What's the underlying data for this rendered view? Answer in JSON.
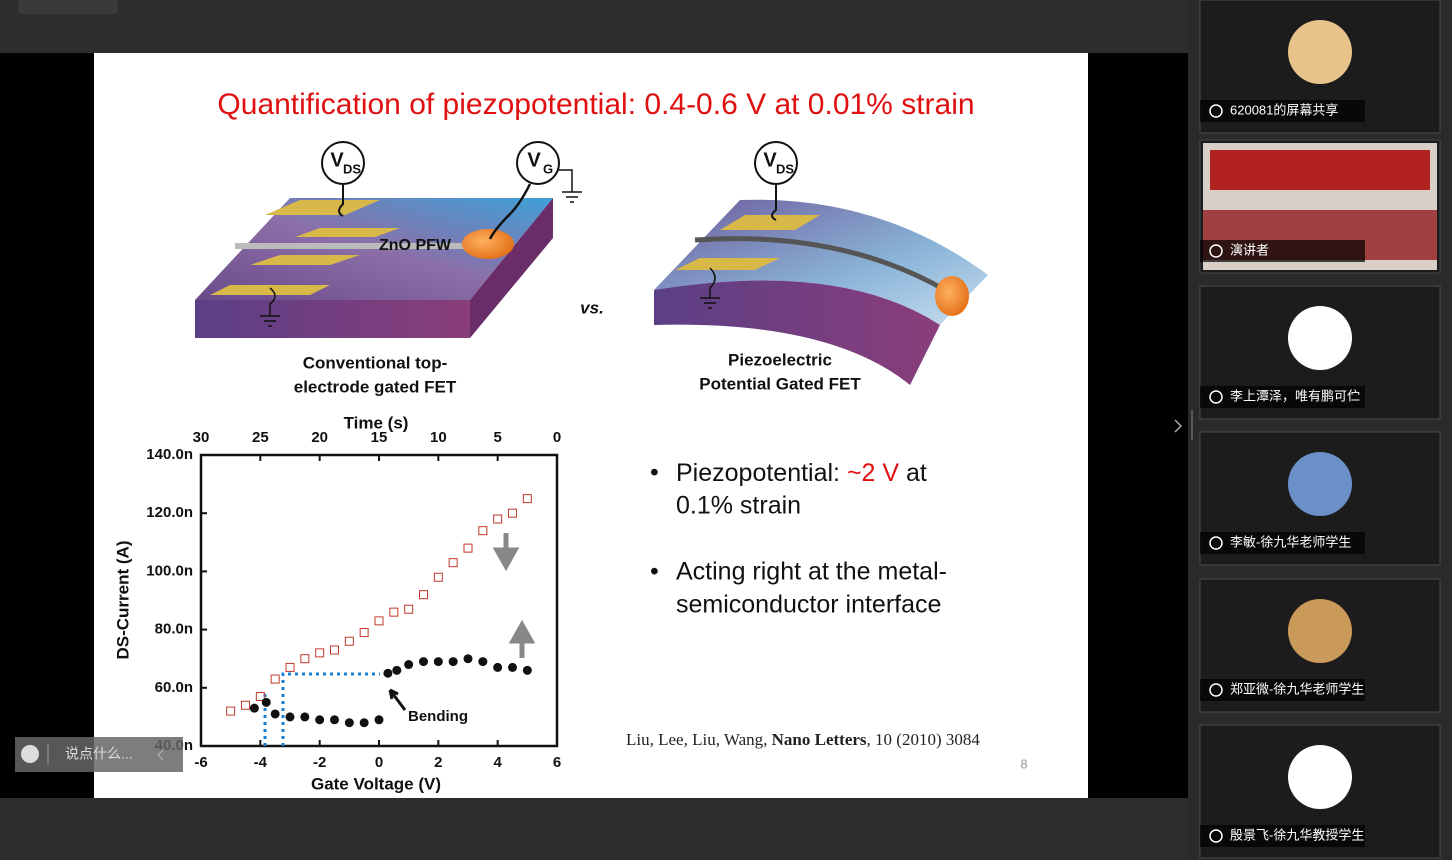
{
  "slide": {
    "title": "Quantification of piezopotential: 0.4-0.6 V at 0.01% strain",
    "left_device": {
      "vds": "V",
      "vds_sub": "DS",
      "vg": "V",
      "vg_sub": "G",
      "wire_label": "ZnO PFW",
      "caption": [
        "Conventional top-",
        "electrode gated FET"
      ]
    },
    "vs": "vs.",
    "right_device": {
      "vds": "V",
      "vds_sub": "DS",
      "caption": [
        "Piezoelectric",
        "Potential Gated FET"
      ]
    },
    "chart": {
      "type": "scatter",
      "top_label": "Time (s)",
      "x_label": "Gate Voltage (V)",
      "y_label": "DS-Current (A)",
      "annotation": "Bending",
      "xlim": [
        -6,
        6
      ],
      "xticks": [
        -6,
        -4,
        -2,
        0,
        2,
        4,
        6
      ],
      "top_xlim": [
        30,
        0
      ],
      "top_xticks": [
        30,
        25,
        20,
        15,
        10,
        5,
        0
      ],
      "ylim": [
        40,
        140
      ],
      "yticks": [
        {
          "value": 40,
          "label": "40.0n"
        },
        {
          "value": 60,
          "label": "60.0n"
        },
        {
          "value": 80,
          "label": "80.0n"
        },
        {
          "value": 100,
          "label": "100.0n"
        },
        {
          "value": 120,
          "label": "120.0n"
        },
        {
          "value": 140,
          "label": "140.0n"
        }
      ],
      "series": [
        {
          "color": "#c0392b",
          "marker": "open-square",
          "x": [
            -5,
            -4.5,
            -4,
            -3.5,
            -3,
            -2.5,
            -2,
            -1.5,
            -1,
            -0.5,
            0,
            0.5,
            1,
            1.5,
            2,
            2.5,
            3,
            3.5,
            4,
            4.5,
            5
          ],
          "values": [
            52,
            54,
            57,
            63,
            67,
            70,
            72,
            73,
            76,
            79,
            83,
            86,
            87,
            92,
            98,
            103,
            108,
            114,
            118,
            120,
            125
          ]
        },
        {
          "color": "#111111",
          "marker": "filled-circle",
          "x": [
            -4.2,
            -3.8,
            -3.5,
            -3,
            -2.5,
            -2,
            -1.5,
            -1,
            -0.5,
            0,
            0.3,
            0.6,
            1,
            1.5,
            2,
            2.5,
            3,
            3.5,
            4,
            4.5,
            5
          ],
          "values": [
            53,
            55,
            51,
            50,
            50,
            49,
            49,
            48,
            48,
            49,
            65,
            66,
            68,
            69,
            69,
            69,
            70,
            69,
            67,
            67,
            66
          ]
        }
      ]
    },
    "bullets": [
      {
        "lines": [
          [
            "Piezopotential: ",
            "~2 V",
            " at"
          ],
          [
            "0.1% strain"
          ]
        ]
      },
      {
        "lines": [
          [
            "Acting right at the metal-"
          ],
          [
            "semiconductor interface"
          ]
        ]
      }
    ],
    "citation": {
      "authors": "Liu, Lee, Liu, Wang, ",
      "journal": "Nano Letters",
      "details": ", 10 (2010) 3084"
    },
    "page_number": "8"
  },
  "sidebar": {
    "participants": [
      {
        "name": "620081的屏幕共享"
      },
      {
        "name": "演讲者"
      },
      {
        "name": "李上潭泽，唯有鹏可伫"
      },
      {
        "name": "李敏-徐九华老师学生"
      },
      {
        "name": "郑亚微-徐九华老师学生"
      },
      {
        "name": "殷景飞-徐九华教授学生"
      }
    ]
  },
  "chat_input": {
    "placeholder": "说点什么..."
  }
}
